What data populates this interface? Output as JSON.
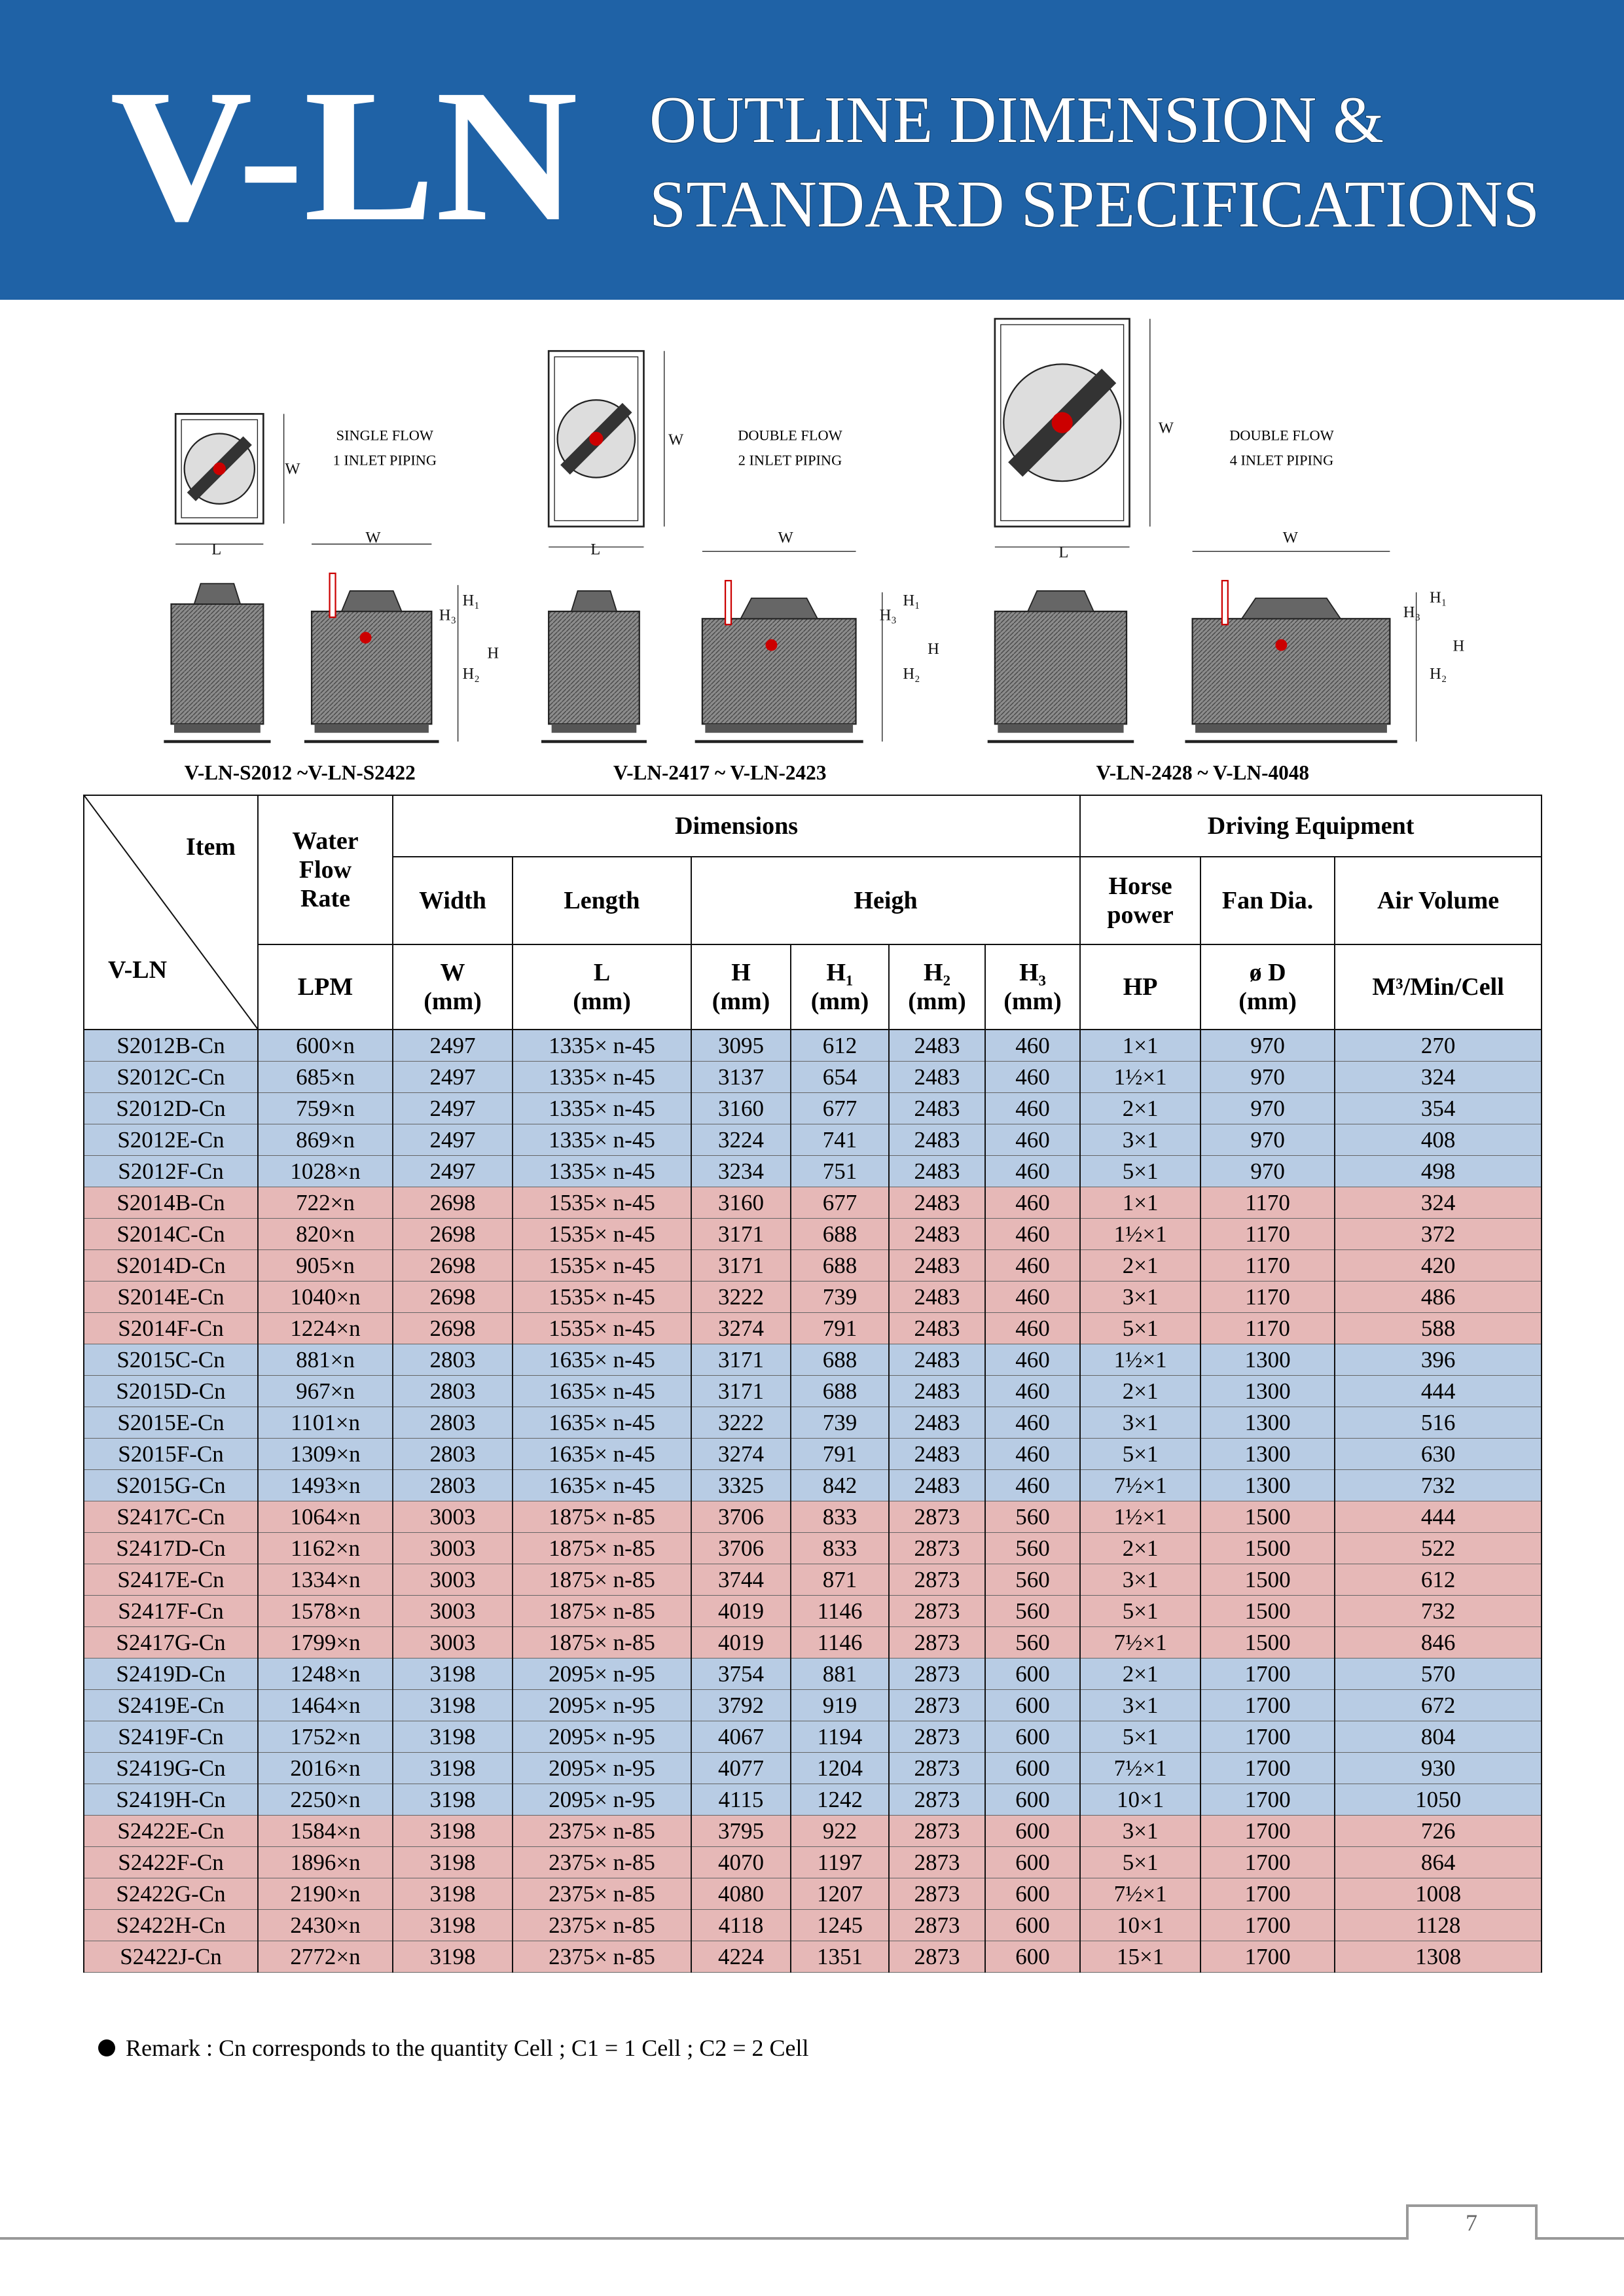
{
  "header": {
    "brand": "V-LN",
    "title_line1": "OUTLINE DIMENSION &",
    "title_line2": "STANDARD SPECIFICATIONS"
  },
  "diagrams": [
    {
      "flow": "SINGLE FLOW",
      "piping": "1 INLET PIPING",
      "caption": "V-LN-S2012 ~V-LN-S2422",
      "labels": [
        "W",
        "L",
        "W",
        "H₁",
        "H₃",
        "H",
        "H₂"
      ]
    },
    {
      "flow": "DOUBLE FLOW",
      "piping": "2 INLET PIPING",
      "caption": "V-LN-2417 ~ V-LN-2423",
      "labels": [
        "W",
        "L",
        "W",
        "H₁",
        "H₃",
        "H",
        "H₂"
      ]
    },
    {
      "flow": "DOUBLE FLOW",
      "piping": "4 INLET PIPING",
      "caption": "V-LN-2428 ~ V-LN-4048",
      "labels": [
        "W",
        "L",
        "W",
        "H₁",
        "H₃",
        "H",
        "H₂"
      ]
    }
  ],
  "table": {
    "item": "Item",
    "model": "V-LN",
    "water": "Water\nFlow\nRate",
    "dimensions": "Dimensions",
    "driving": "Driving Equipment",
    "sub": [
      "Width",
      "Length",
      "Heigh",
      "Horse\npower",
      "Fan Dia.",
      "Air Volume"
    ],
    "units": [
      "LPM",
      "W\n(mm)",
      "L\n(mm)",
      "H\n(mm)",
      "H₁\n(mm)",
      "H₂\n(mm)",
      "H₃\n(mm)",
      "HP",
      "ø D\n(mm)",
      "M³/Min/Cell"
    ],
    "groups": [
      {
        "color": "#b8cce4",
        "rows": [
          [
            "S2012B-Cn",
            "600×n",
            2497,
            "1335× n-45",
            3095,
            612,
            2483,
            460,
            "1×1",
            970,
            270
          ],
          [
            "S2012C-Cn",
            "685×n",
            2497,
            "1335× n-45",
            3137,
            654,
            2483,
            460,
            "1½×1",
            970,
            324
          ],
          [
            "S2012D-Cn",
            "759×n",
            2497,
            "1335× n-45",
            3160,
            677,
            2483,
            460,
            "2×1",
            970,
            354
          ],
          [
            "S2012E-Cn",
            "869×n",
            2497,
            "1335× n-45",
            3224,
            741,
            2483,
            460,
            "3×1",
            970,
            408
          ],
          [
            "S2012F-Cn",
            "1028×n",
            2497,
            "1335× n-45",
            3234,
            751,
            2483,
            460,
            "5×1",
            970,
            498
          ]
        ]
      },
      {
        "color": "#e6b8b7",
        "rows": [
          [
            "S2014B-Cn",
            "722×n",
            2698,
            "1535× n-45",
            3160,
            677,
            2483,
            460,
            "1×1",
            1170,
            324
          ],
          [
            "S2014C-Cn",
            "820×n",
            2698,
            "1535× n-45",
            3171,
            688,
            2483,
            460,
            "1½×1",
            1170,
            372
          ],
          [
            "S2014D-Cn",
            "905×n",
            2698,
            "1535× n-45",
            3171,
            688,
            2483,
            460,
            "2×1",
            1170,
            420
          ],
          [
            "S2014E-Cn",
            "1040×n",
            2698,
            "1535× n-45",
            3222,
            739,
            2483,
            460,
            "3×1",
            1170,
            486
          ],
          [
            "S2014F-Cn",
            "1224×n",
            2698,
            "1535× n-45",
            3274,
            791,
            2483,
            460,
            "5×1",
            1170,
            588
          ]
        ]
      },
      {
        "color": "#b8cce4",
        "rows": [
          [
            "S2015C-Cn",
            "881×n",
            2803,
            "1635× n-45",
            3171,
            688,
            2483,
            460,
            "1½×1",
            1300,
            396
          ],
          [
            "S2015D-Cn",
            "967×n",
            2803,
            "1635× n-45",
            3171,
            688,
            2483,
            460,
            "2×1",
            1300,
            444
          ],
          [
            "S2015E-Cn",
            "1101×n",
            2803,
            "1635× n-45",
            3222,
            739,
            2483,
            460,
            "3×1",
            1300,
            516
          ],
          [
            "S2015F-Cn",
            "1309×n",
            2803,
            "1635× n-45",
            3274,
            791,
            2483,
            460,
            "5×1",
            1300,
            630
          ],
          [
            "S2015G-Cn",
            "1493×n",
            2803,
            "1635× n-45",
            3325,
            842,
            2483,
            460,
            "7½×1",
            1300,
            732
          ]
        ]
      },
      {
        "color": "#e6b8b7",
        "rows": [
          [
            "S2417C-Cn",
            "1064×n",
            3003,
            "1875× n-85",
            3706,
            833,
            2873,
            560,
            "1½×1",
            1500,
            444
          ],
          [
            "S2417D-Cn",
            "1162×n",
            3003,
            "1875× n-85",
            3706,
            833,
            2873,
            560,
            "2×1",
            1500,
            522
          ],
          [
            "S2417E-Cn",
            "1334×n",
            3003,
            "1875× n-85",
            3744,
            871,
            2873,
            560,
            "3×1",
            1500,
            612
          ],
          [
            "S2417F-Cn",
            "1578×n",
            3003,
            "1875× n-85",
            4019,
            1146,
            2873,
            560,
            "5×1",
            1500,
            732
          ],
          [
            "S2417G-Cn",
            "1799×n",
            3003,
            "1875× n-85",
            4019,
            1146,
            2873,
            560,
            "7½×1",
            1500,
            846
          ]
        ]
      },
      {
        "color": "#b8cce4",
        "rows": [
          [
            "S2419D-Cn",
            "1248×n",
            3198,
            "2095× n-95",
            3754,
            881,
            2873,
            600,
            "2×1",
            1700,
            570
          ],
          [
            "S2419E-Cn",
            "1464×n",
            3198,
            "2095× n-95",
            3792,
            919,
            2873,
            600,
            "3×1",
            1700,
            672
          ],
          [
            "S2419F-Cn",
            "1752×n",
            3198,
            "2095× n-95",
            4067,
            1194,
            2873,
            600,
            "5×1",
            1700,
            804
          ],
          [
            "S2419G-Cn",
            "2016×n",
            3198,
            "2095× n-95",
            4077,
            1204,
            2873,
            600,
            "7½×1",
            1700,
            930
          ],
          [
            "S2419H-Cn",
            "2250×n",
            3198,
            "2095× n-95",
            4115,
            1242,
            2873,
            600,
            "10×1",
            1700,
            1050
          ]
        ]
      },
      {
        "color": "#e6b8b7",
        "rows": [
          [
            "S2422E-Cn",
            "1584×n",
            3198,
            "2375× n-85",
            3795,
            922,
            2873,
            600,
            "3×1",
            1700,
            726
          ],
          [
            "S2422F-Cn",
            "1896×n",
            3198,
            "2375× n-85",
            4070,
            1197,
            2873,
            600,
            "5×1",
            1700,
            864
          ],
          [
            "S2422G-Cn",
            "2190×n",
            3198,
            "2375× n-85",
            4080,
            1207,
            2873,
            600,
            "7½×1",
            1700,
            1008
          ],
          [
            "S2422H-Cn",
            "2430×n",
            3198,
            "2375× n-85",
            4118,
            1245,
            2873,
            600,
            "10×1",
            1700,
            1128
          ],
          [
            "S2422J-Cn",
            "2772×n",
            3198,
            "2375× n-85",
            4224,
            1351,
            2873,
            600,
            "15×1",
            1700,
            1308
          ]
        ]
      }
    ]
  },
  "remark": "Remark : Cn corresponds to the quantity Cell ; C1 = 1 Cell ; C2 = 2 Cell",
  "page_number": "7"
}
